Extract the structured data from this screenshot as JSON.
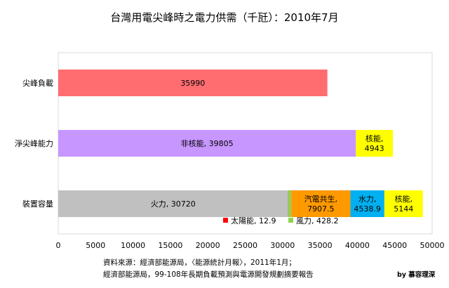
{
  "chart_data": {
    "type": "bar",
    "orientation": "horizontal",
    "stacked": true,
    "title": "台灣用電尖峰時之電力供需（千瓩）：2010年7月",
    "xlim": [
      0,
      50000
    ],
    "x_ticks": [
      "0",
      "5000",
      "10000",
      "15000",
      "20000",
      "25000",
      "30000",
      "35000",
      "40000",
      "45000",
      "50000"
    ],
    "categories": [
      "尖峰負載",
      "淨尖峰能力",
      "裝置容量"
    ],
    "bars": [
      {
        "category": "尖峰負載",
        "segments": [
          {
            "name": "尖峰負載",
            "value": 35990,
            "label": "35990",
            "color": "#ff6d70"
          }
        ]
      },
      {
        "category": "淨尖峰能力",
        "segments": [
          {
            "name": "非核能",
            "value": 39805,
            "label": "非核能, 39805",
            "color": "#c896ff"
          },
          {
            "name": "核能",
            "value": 4943,
            "label": "核能,\n4943",
            "color": "#ffff00"
          }
        ]
      },
      {
        "category": "裝置容量",
        "segments": [
          {
            "name": "火力",
            "value": 30720,
            "label": "火力, 30720",
            "color": "#c0c0c0"
          },
          {
            "name": "太陽能",
            "value": 12.9,
            "label": "",
            "color": "#ff0000"
          },
          {
            "name": "風力",
            "value": 428.2,
            "label": "",
            "color": "#92d050"
          },
          {
            "name": "汽電共生",
            "value": 7907.5,
            "label": "汽電共生,\n7907.5",
            "color": "#ff9900"
          },
          {
            "name": "水力",
            "value": 4538.9,
            "label": "水力,\n4538.9",
            "color": "#00b0f0"
          },
          {
            "name": "核能",
            "value": 5144,
            "label": "核能,\n5144",
            "color": "#ffff00"
          }
        ]
      }
    ],
    "legend": [
      {
        "label": "太陽能, 12.9",
        "color": "#ff0000"
      },
      {
        "label": "風力, 428.2",
        "color": "#92d050"
      }
    ],
    "grid": false
  },
  "notes": {
    "source_line1": "資料來源：經濟部能源局，〈能源統計月報〉，2011年1月；",
    "source_line2": "經濟部能源局，99-108年長期負載預測與電源開發規劃摘要報告",
    "credit": "by 慕容理深"
  }
}
